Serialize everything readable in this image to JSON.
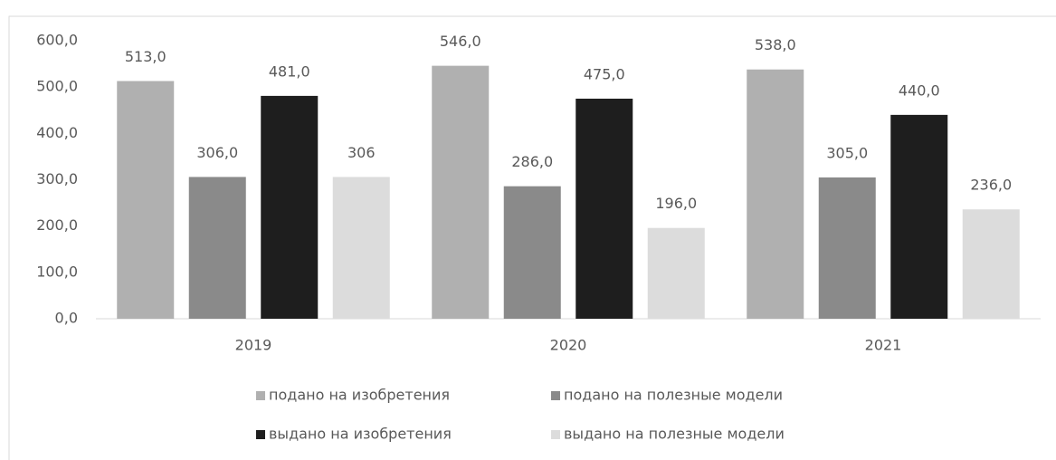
{
  "chart_data": {
    "type": "bar",
    "categories": [
      "2019",
      "2020",
      "2021"
    ],
    "series": [
      {
        "name": "подано на изобретения",
        "color": "#b0b0b0",
        "values": [
          513,
          546,
          538
        ],
        "value_labels": [
          "513,0",
          "546,0",
          "538,0"
        ]
      },
      {
        "name": "подано на полезные модели",
        "color": "#8a8a8a",
        "values": [
          306,
          286,
          305
        ],
        "value_labels": [
          "306,0",
          "286,0",
          "305,0"
        ]
      },
      {
        "name": "выдано на изобретения",
        "color": "#1e1e1e",
        "values": [
          481,
          475,
          440
        ],
        "value_labels": [
          "481,0",
          "475,0",
          "440,0"
        ]
      },
      {
        "name": "выдано на полезные модели",
        "color": "#dcdcdc",
        "values": [
          306,
          196,
          236
        ],
        "value_labels": [
          "306",
          "196,0",
          "236,0"
        ]
      }
    ],
    "ylim": [
      0,
      600
    ],
    "yticks": [
      {
        "value": 0,
        "label": "0,0"
      },
      {
        "value": 100,
        "label": "100,0"
      },
      {
        "value": 200,
        "label": "200,0"
      },
      {
        "value": 300,
        "label": "300,0"
      },
      {
        "value": 400,
        "label": "400,0"
      },
      {
        "value": 500,
        "label": "500,0"
      },
      {
        "value": 600,
        "label": "600,0"
      }
    ],
    "grid": false,
    "legend": "bottom"
  }
}
